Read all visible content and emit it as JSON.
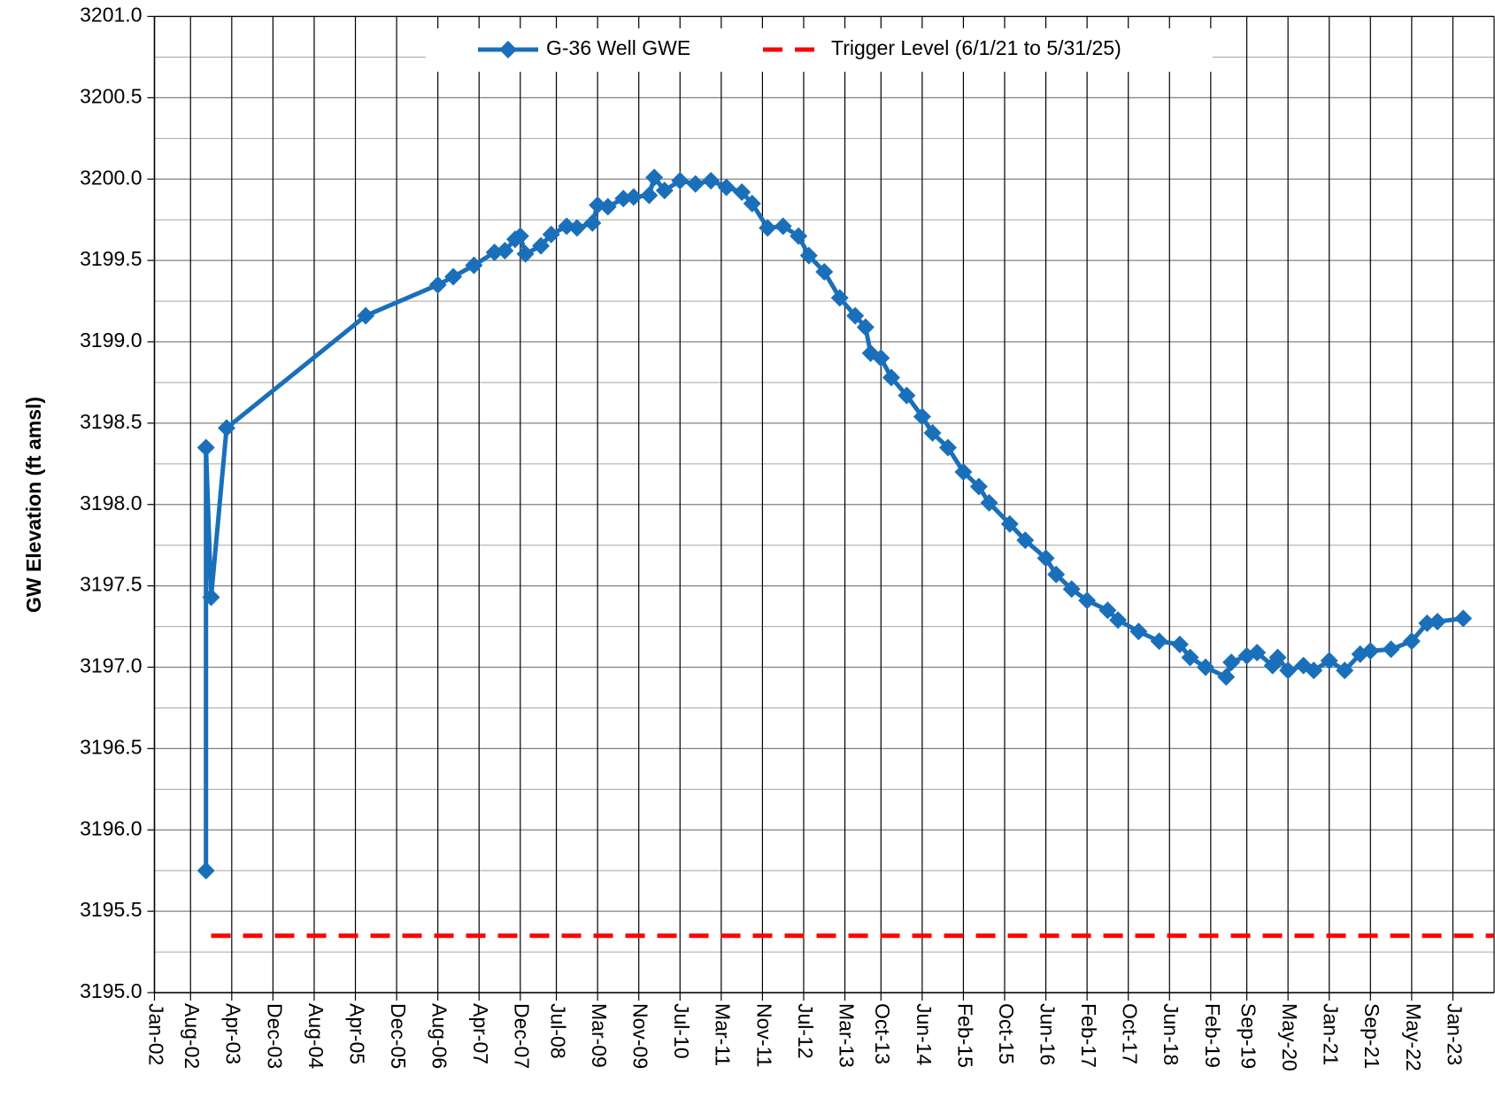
{
  "chart_data": {
    "type": "line",
    "y_axis_label": "GW Elevation (ft amsl)",
    "xlim": [
      "2002-01",
      "2023-09"
    ],
    "xticks": [
      {
        "value": "2002-01",
        "label": "Jan-02"
      },
      {
        "value": "2002-08",
        "label": "Aug-02"
      },
      {
        "value": "2003-04",
        "label": "Apr-03"
      },
      {
        "value": "2003-12",
        "label": "Dec-03"
      },
      {
        "value": "2004-08",
        "label": "Aug-04"
      },
      {
        "value": "2005-04",
        "label": "Apr-05"
      },
      {
        "value": "2005-12",
        "label": "Dec-05"
      },
      {
        "value": "2006-08",
        "label": "Aug-06"
      },
      {
        "value": "2007-04",
        "label": "Apr-07"
      },
      {
        "value": "2007-12",
        "label": "Dec-07"
      },
      {
        "value": "2008-07",
        "label": "Jul-08"
      },
      {
        "value": "2009-03",
        "label": "Mar-09"
      },
      {
        "value": "2009-11",
        "label": "Nov-09"
      },
      {
        "value": "2010-07",
        "label": "Jul-10"
      },
      {
        "value": "2011-03",
        "label": "Mar-11"
      },
      {
        "value": "2011-11",
        "label": "Nov-11"
      },
      {
        "value": "2012-07",
        "label": "Jul-12"
      },
      {
        "value": "2013-03",
        "label": "Mar-13"
      },
      {
        "value": "2013-10",
        "label": "Oct-13"
      },
      {
        "value": "2014-06",
        "label": "Jun-14"
      },
      {
        "value": "2015-02",
        "label": "Feb-15"
      },
      {
        "value": "2015-10",
        "label": "Oct-15"
      },
      {
        "value": "2016-06",
        "label": "Jun-16"
      },
      {
        "value": "2017-02",
        "label": "Feb-17"
      },
      {
        "value": "2017-10",
        "label": "Oct-17"
      },
      {
        "value": "2018-06",
        "label": "Jun-18"
      },
      {
        "value": "2019-02",
        "label": "Feb-19"
      },
      {
        "value": "2019-09",
        "label": "Sep-19"
      },
      {
        "value": "2020-05",
        "label": "May-20"
      },
      {
        "value": "2021-01",
        "label": "Jan-21"
      },
      {
        "value": "2021-09",
        "label": "Sep-21"
      },
      {
        "value": "2022-05",
        "label": "May-22"
      },
      {
        "value": "2023-01",
        "label": "Jan-23"
      }
    ],
    "ylim": [
      3195,
      3201
    ],
    "yticks": [
      {
        "value": 3195,
        "label": "3195.0"
      },
      {
        "value": 3195.5,
        "label": "3195.5"
      },
      {
        "value": 3196,
        "label": "3196.0"
      },
      {
        "value": 3196.5,
        "label": "3196.5"
      },
      {
        "value": 3197,
        "label": "3197.0"
      },
      {
        "value": 3197.5,
        "label": "3197.5"
      },
      {
        "value": 3198,
        "label": "3198.0"
      },
      {
        "value": 3198.5,
        "label": "3198.5"
      },
      {
        "value": 3199,
        "label": "3199.0"
      },
      {
        "value": 3199.5,
        "label": "3199.5"
      },
      {
        "value": 3200,
        "label": "3200.0"
      },
      {
        "value": 3200.5,
        "label": "3200.5"
      },
      {
        "value": 3201,
        "label": "3201.0"
      }
    ],
    "yminorticks": [
      3195.25,
      3195.75,
      3196.25,
      3196.75,
      3197.25,
      3197.75,
      3198.25,
      3198.75,
      3199.25,
      3199.75,
      3200.25,
      3200.75
    ],
    "grid": true,
    "legend": "top",
    "series": [
      {
        "name": "G-36 Well GWE",
        "color": "#1a6fba",
        "marker": "diamond",
        "dash": false,
        "x": [
          "2002-11",
          "2002-11",
          "2002-12",
          "2003-03",
          "2005-06",
          "2006-08",
          "2006-11",
          "2007-03",
          "2007-07",
          "2007-09",
          "2007-11",
          "2007-12",
          "2008-01",
          "2008-04",
          "2008-06",
          "2008-09",
          "2008-11",
          "2009-02",
          "2009-03",
          "2009-05",
          "2009-08",
          "2009-10",
          "2010-01",
          "2010-02",
          "2010-04",
          "2010-07",
          "2010-10",
          "2011-01",
          "2011-04",
          "2011-07",
          "2011-09",
          "2011-12",
          "2012-03",
          "2012-06",
          "2012-08",
          "2012-11",
          "2013-02",
          "2013-05",
          "2013-07",
          "2013-08",
          "2013-10",
          "2013-12",
          "2014-03",
          "2014-06",
          "2014-08",
          "2014-11",
          "2015-02",
          "2015-05",
          "2015-07",
          "2015-11",
          "2016-02",
          "2016-06",
          "2016-08",
          "2016-11",
          "2017-02",
          "2017-06",
          "2017-08",
          "2017-12",
          "2018-04",
          "2018-08",
          "2018-10",
          "2019-01",
          "2019-05",
          "2019-06",
          "2019-09",
          "2019-11",
          "2020-02",
          "2020-03",
          "2020-05",
          "2020-08",
          "2020-10",
          "2021-01",
          "2021-04",
          "2021-07",
          "2021-09",
          "2022-01",
          "2022-05",
          "2022-08",
          "2022-10",
          "2023-03"
        ],
        "values": [
          3195.75,
          3198.35,
          3197.43,
          3198.47,
          3199.16,
          3199.35,
          3199.4,
          3199.47,
          3199.55,
          3199.56,
          3199.63,
          3199.65,
          3199.54,
          3199.59,
          3199.66,
          3199.71,
          3199.7,
          3199.73,
          3199.84,
          3199.83,
          3199.88,
          3199.89,
          3199.9,
          3200.01,
          3199.93,
          3199.99,
          3199.97,
          3199.99,
          3199.95,
          3199.92,
          3199.85,
          3199.7,
          3199.71,
          3199.65,
          3199.53,
          3199.43,
          3199.27,
          3199.16,
          3199.09,
          3198.93,
          3198.9,
          3198.78,
          3198.67,
          3198.54,
          3198.44,
          3198.35,
          3198.2,
          3198.11,
          3198.01,
          3197.88,
          3197.78,
          3197.67,
          3197.57,
          3197.48,
          3197.41,
          3197.35,
          3197.29,
          3197.22,
          3197.16,
          3197.14,
          3197.06,
          3197.0,
          3196.94,
          3197.03,
          3197.07,
          3197.09,
          3197.01,
          3197.06,
          3196.98,
          3197.01,
          3196.98,
          3197.04,
          3196.98,
          3197.08,
          3197.1,
          3197.11,
          3197.16,
          3197.27,
          3197.28,
          3197.3
        ]
      },
      {
        "name": "Trigger Level (6/1/21 to 5/31/25)",
        "color": "#ff0000",
        "marker": "none",
        "dash": true,
        "x": [
          "2002-12",
          "2023-09"
        ],
        "values": [
          3195.35,
          3195.35
        ]
      }
    ]
  }
}
